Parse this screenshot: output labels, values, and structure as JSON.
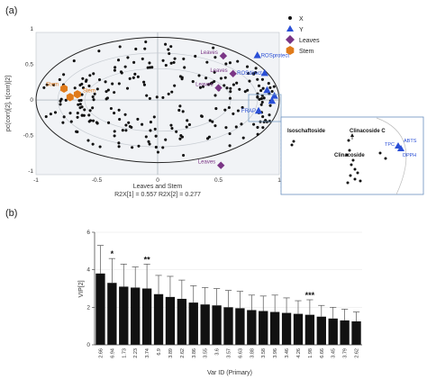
{
  "panels": {
    "a": "(a)",
    "b": "(b)"
  },
  "chart_data": [
    {
      "type": "scatter",
      "title": "",
      "xlabel": "Leaves and Stem",
      "xlabel_stats": "R2X[1] = 0.557 R2X[2] = 0.277",
      "ylabel": "pc(corr)[2], t(corr)[2]",
      "xlim": [
        -1,
        1
      ],
      "ylim": [
        -1.05,
        0.95
      ],
      "xticks": [
        "-1",
        "-0.5",
        "0",
        "0.5",
        "1"
      ],
      "yticks": [
        "1",
        "0.5",
        "0",
        "-0.5",
        "-1"
      ],
      "ellipses": [
        "Hotelling T2",
        "r2 outer",
        "r2 inner"
      ],
      "legend": {
        "position": "top-right",
        "entries": [
          {
            "label": "X",
            "marker": "dot",
            "color": "#111111"
          },
          {
            "label": "Y",
            "marker": "triangle",
            "color": "#2a4fd6"
          },
          {
            "label": "Leaves",
            "marker": "diamond",
            "color": "#7a3585"
          },
          {
            "label": "Stem",
            "marker": "hexagon",
            "color": "#e07b1b"
          }
        ]
      },
      "y_points": [
        {
          "label": "ROSprotect",
          "x": 0.82,
          "y": 0.63
        },
        {
          "label": "ROSdirect",
          "x": 0.88,
          "y": 0.38
        },
        {
          "label": "",
          "x": 0.96,
          "y": 0.06
        },
        {
          "label": "FRAP",
          "x": 0.83,
          "y": -0.15
        },
        {
          "label": "",
          "x": 0.94,
          "y": -0.01
        },
        {
          "label": "",
          "x": 0.9,
          "y": 0.14
        }
      ],
      "leaves_points": [
        {
          "label": "Leaves",
          "x": 0.54,
          "y": 0.62
        },
        {
          "label": "Leaves",
          "x": 0.62,
          "y": 0.37
        },
        {
          "label": "Leaves",
          "x": 0.5,
          "y": 0.17
        },
        {
          "label": "Leaves",
          "x": 0.52,
          "y": -0.92
        }
      ],
      "stem_points": [
        {
          "label": "Stem",
          "x": -0.77,
          "y": 0.16
        },
        {
          "label": "Stem",
          "x": -0.66,
          "y": 0.08
        },
        {
          "label": "",
          "x": -0.72,
          "y": 0.04
        }
      ],
      "x_variables_note": "approx. 240 X-variable loadings"
    },
    {
      "type": "scatter",
      "title": "",
      "labels": [
        "Isoschaftoside",
        "Clinacoside C",
        "Clinacoside",
        "TPC",
        "ABTS",
        "DPPH"
      ]
    },
    {
      "type": "bar",
      "title": "",
      "xlabel": "Var ID (Primary)",
      "ylabel": "VIP[2]",
      "ylim": [
        0,
        6
      ],
      "yticks": [
        "0",
        "2",
        "4",
        "6"
      ],
      "categories": [
        "2.66",
        "6.94",
        "1.73",
        "2.23",
        "3.74",
        "6.9",
        "3.89",
        "2.62",
        "3.86",
        "3.55",
        "3.6",
        "3.57",
        "6.63",
        "3.88",
        "3.58",
        "3.96",
        "3.46",
        "4.26",
        "1.98",
        "6.66",
        "3.45",
        "3.79",
        "2.62"
      ],
      "values": [
        3.8,
        3.3,
        3.1,
        3.05,
        3.0,
        2.7,
        2.55,
        2.45,
        2.25,
        2.15,
        2.1,
        2.0,
        1.95,
        1.85,
        1.8,
        1.75,
        1.7,
        1.65,
        1.6,
        1.5,
        1.4,
        1.3,
        1.25
      ],
      "errors": [
        1.5,
        1.3,
        1.2,
        1.1,
        1.3,
        1.0,
        1.1,
        1.0,
        0.9,
        0.9,
        0.9,
        0.9,
        0.9,
        0.8,
        0.8,
        0.9,
        0.8,
        0.7,
        0.8,
        0.6,
        0.6,
        0.6,
        0.5
      ],
      "significance": [
        {
          "category_index": 1,
          "label": "*"
        },
        {
          "category_index": 4,
          "label": "**"
        },
        {
          "category_index": 18,
          "label": "***"
        }
      ]
    }
  ]
}
